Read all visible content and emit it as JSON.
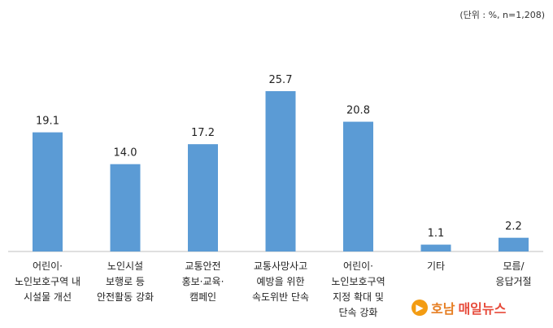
{
  "unit_note": "(단위 : %, n=1,208)",
  "watermark": {
    "part1": "호남",
    "part2": "매일뉴스"
  },
  "chart_data": {
    "type": "bar",
    "categories": [
      [
        "어린이·",
        "노인보호구역 내",
        "시설물 개선"
      ],
      [
        "노인시설",
        "보행로 등",
        "안전활동 강화"
      ],
      [
        "교통안전",
        "홍보·교육·",
        "캠페인"
      ],
      [
        "교통사망사고",
        "예방을 위한",
        "속도위반 단속"
      ],
      [
        "어린이·",
        "노인보호구역",
        "지정 확대 및",
        "단속 강화"
      ],
      [
        "기타"
      ],
      [
        "모름/",
        "응답거절"
      ]
    ],
    "values": [
      19.1,
      14.0,
      17.2,
      25.7,
      20.8,
      1.1,
      2.2
    ],
    "value_labels": [
      "19.1",
      "14.0",
      "17.2",
      "25.7",
      "20.8",
      "1.1",
      "2.2"
    ],
    "ylim": [
      0,
      25.7
    ],
    "bar_color": "#5b9bd5",
    "grid": false,
    "legend": "none"
  }
}
